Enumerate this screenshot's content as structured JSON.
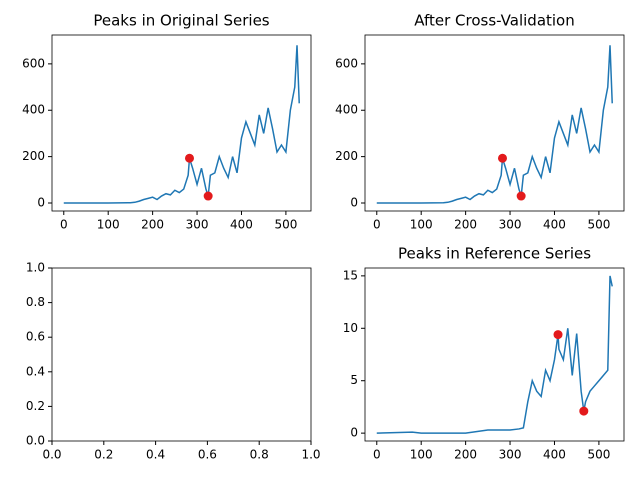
{
  "chart_data": [
    {
      "type": "line",
      "title": "Peaks in Original Series",
      "x": [
        0,
        50,
        100,
        150,
        160,
        170,
        180,
        190,
        200,
        210,
        220,
        230,
        240,
        250,
        260,
        270,
        280,
        283,
        290,
        300,
        310,
        320,
        325,
        330,
        340,
        350,
        360,
        370,
        380,
        390,
        400,
        410,
        420,
        430,
        440,
        450,
        460,
        470,
        480,
        490,
        500,
        510,
        520,
        525,
        530
      ],
      "series": [
        {
          "color": "#1f77b4",
          "values": [
            0,
            0,
            0,
            1,
            3,
            8,
            15,
            20,
            25,
            15,
            30,
            40,
            35,
            55,
            45,
            60,
            120,
            193,
            150,
            80,
            150,
            60,
            30,
            120,
            130,
            200,
            150,
            110,
            200,
            130,
            280,
            350,
            300,
            250,
            380,
            300,
            410,
            320,
            220,
            250,
            220,
            400,
            500,
            680,
            430
          ]
        }
      ],
      "peaks": {
        "color": "#e31a1c",
        "x": [
          283,
          325
        ],
        "values": [
          193,
          30
        ]
      },
      "xlim": [
        -26.5,
        556.5
      ],
      "xticks": [
        0,
        100,
        200,
        300,
        400,
        500
      ],
      "ylim": [
        -34.5,
        724.5
      ],
      "yticks": [
        0,
        200,
        400,
        600
      ]
    },
    {
      "type": "line",
      "title": "After Cross-Validation",
      "x": [
        0,
        50,
        100,
        150,
        160,
        170,
        180,
        190,
        200,
        210,
        220,
        230,
        240,
        250,
        260,
        270,
        280,
        283,
        290,
        300,
        310,
        320,
        325,
        330,
        340,
        350,
        360,
        370,
        380,
        390,
        400,
        410,
        420,
        430,
        440,
        450,
        460,
        470,
        480,
        490,
        500,
        510,
        520,
        525,
        530
      ],
      "series": [
        {
          "color": "#1f77b4",
          "values": [
            0,
            0,
            0,
            1,
            3,
            8,
            15,
            20,
            25,
            15,
            30,
            40,
            35,
            55,
            45,
            60,
            120,
            193,
            150,
            80,
            150,
            60,
            30,
            120,
            130,
            200,
            150,
            110,
            200,
            130,
            280,
            350,
            300,
            250,
            380,
            300,
            410,
            320,
            220,
            250,
            220,
            400,
            500,
            680,
            430
          ]
        }
      ],
      "peaks": {
        "color": "#e31a1c",
        "x": [
          283,
          325
        ],
        "values": [
          193,
          30
        ]
      },
      "xlim": [
        -26.5,
        556.5
      ],
      "xticks": [
        0,
        100,
        200,
        300,
        400,
        500
      ],
      "ylim": [
        -34.5,
        724.5
      ],
      "yticks": [
        0,
        200,
        400,
        600
      ]
    },
    {
      "type": "line",
      "xlim": [
        0,
        1
      ],
      "xticks": [
        {
          "value": 0,
          "label": "0.0"
        },
        {
          "value": 0.2,
          "label": "0.2"
        },
        {
          "value": 0.4,
          "label": "0.4"
        },
        {
          "value": 0.6,
          "label": "0.6"
        },
        {
          "value": 0.8,
          "label": "0.8"
        },
        {
          "value": 1,
          "label": "1.0"
        }
      ],
      "ylim": [
        0,
        1
      ],
      "yticks": [
        {
          "value": 0,
          "label": "0.0"
        },
        {
          "value": 0.2,
          "label": "0.2"
        },
        {
          "value": 0.4,
          "label": "0.4"
        },
        {
          "value": 0.6,
          "label": "0.6"
        },
        {
          "value": 0.8,
          "label": "0.8"
        },
        {
          "value": 1,
          "label": "1.0"
        }
      ]
    },
    {
      "type": "line",
      "title": "Peaks in Reference Series",
      "x": [
        0,
        80,
        100,
        200,
        250,
        300,
        320,
        330,
        340,
        350,
        360,
        370,
        380,
        390,
        400,
        408,
        410,
        420,
        430,
        440,
        450,
        460,
        466,
        470,
        480,
        490,
        500,
        510,
        520,
        525,
        530
      ],
      "series": [
        {
          "color": "#1f77b4",
          "values": [
            0,
            0.1,
            0,
            0,
            0.3,
            0.3,
            0.4,
            0.5,
            3,
            5,
            4,
            3.5,
            6,
            5,
            7,
            9.4,
            8,
            7,
            10,
            5.5,
            9.5,
            4,
            2.1,
            3,
            4,
            4.5,
            5,
            5.5,
            6,
            15,
            14
          ]
        }
      ],
      "peaks": {
        "color": "#e31a1c",
        "x": [
          408,
          466
        ],
        "values": [
          9.4,
          2.1
        ]
      },
      "xlim": [
        -26.5,
        556.5
      ],
      "xticks": [
        0,
        100,
        200,
        300,
        400,
        500
      ],
      "ylim": [
        -0.75,
        15.75
      ],
      "yticks": [
        0,
        5,
        10,
        15
      ]
    }
  ]
}
